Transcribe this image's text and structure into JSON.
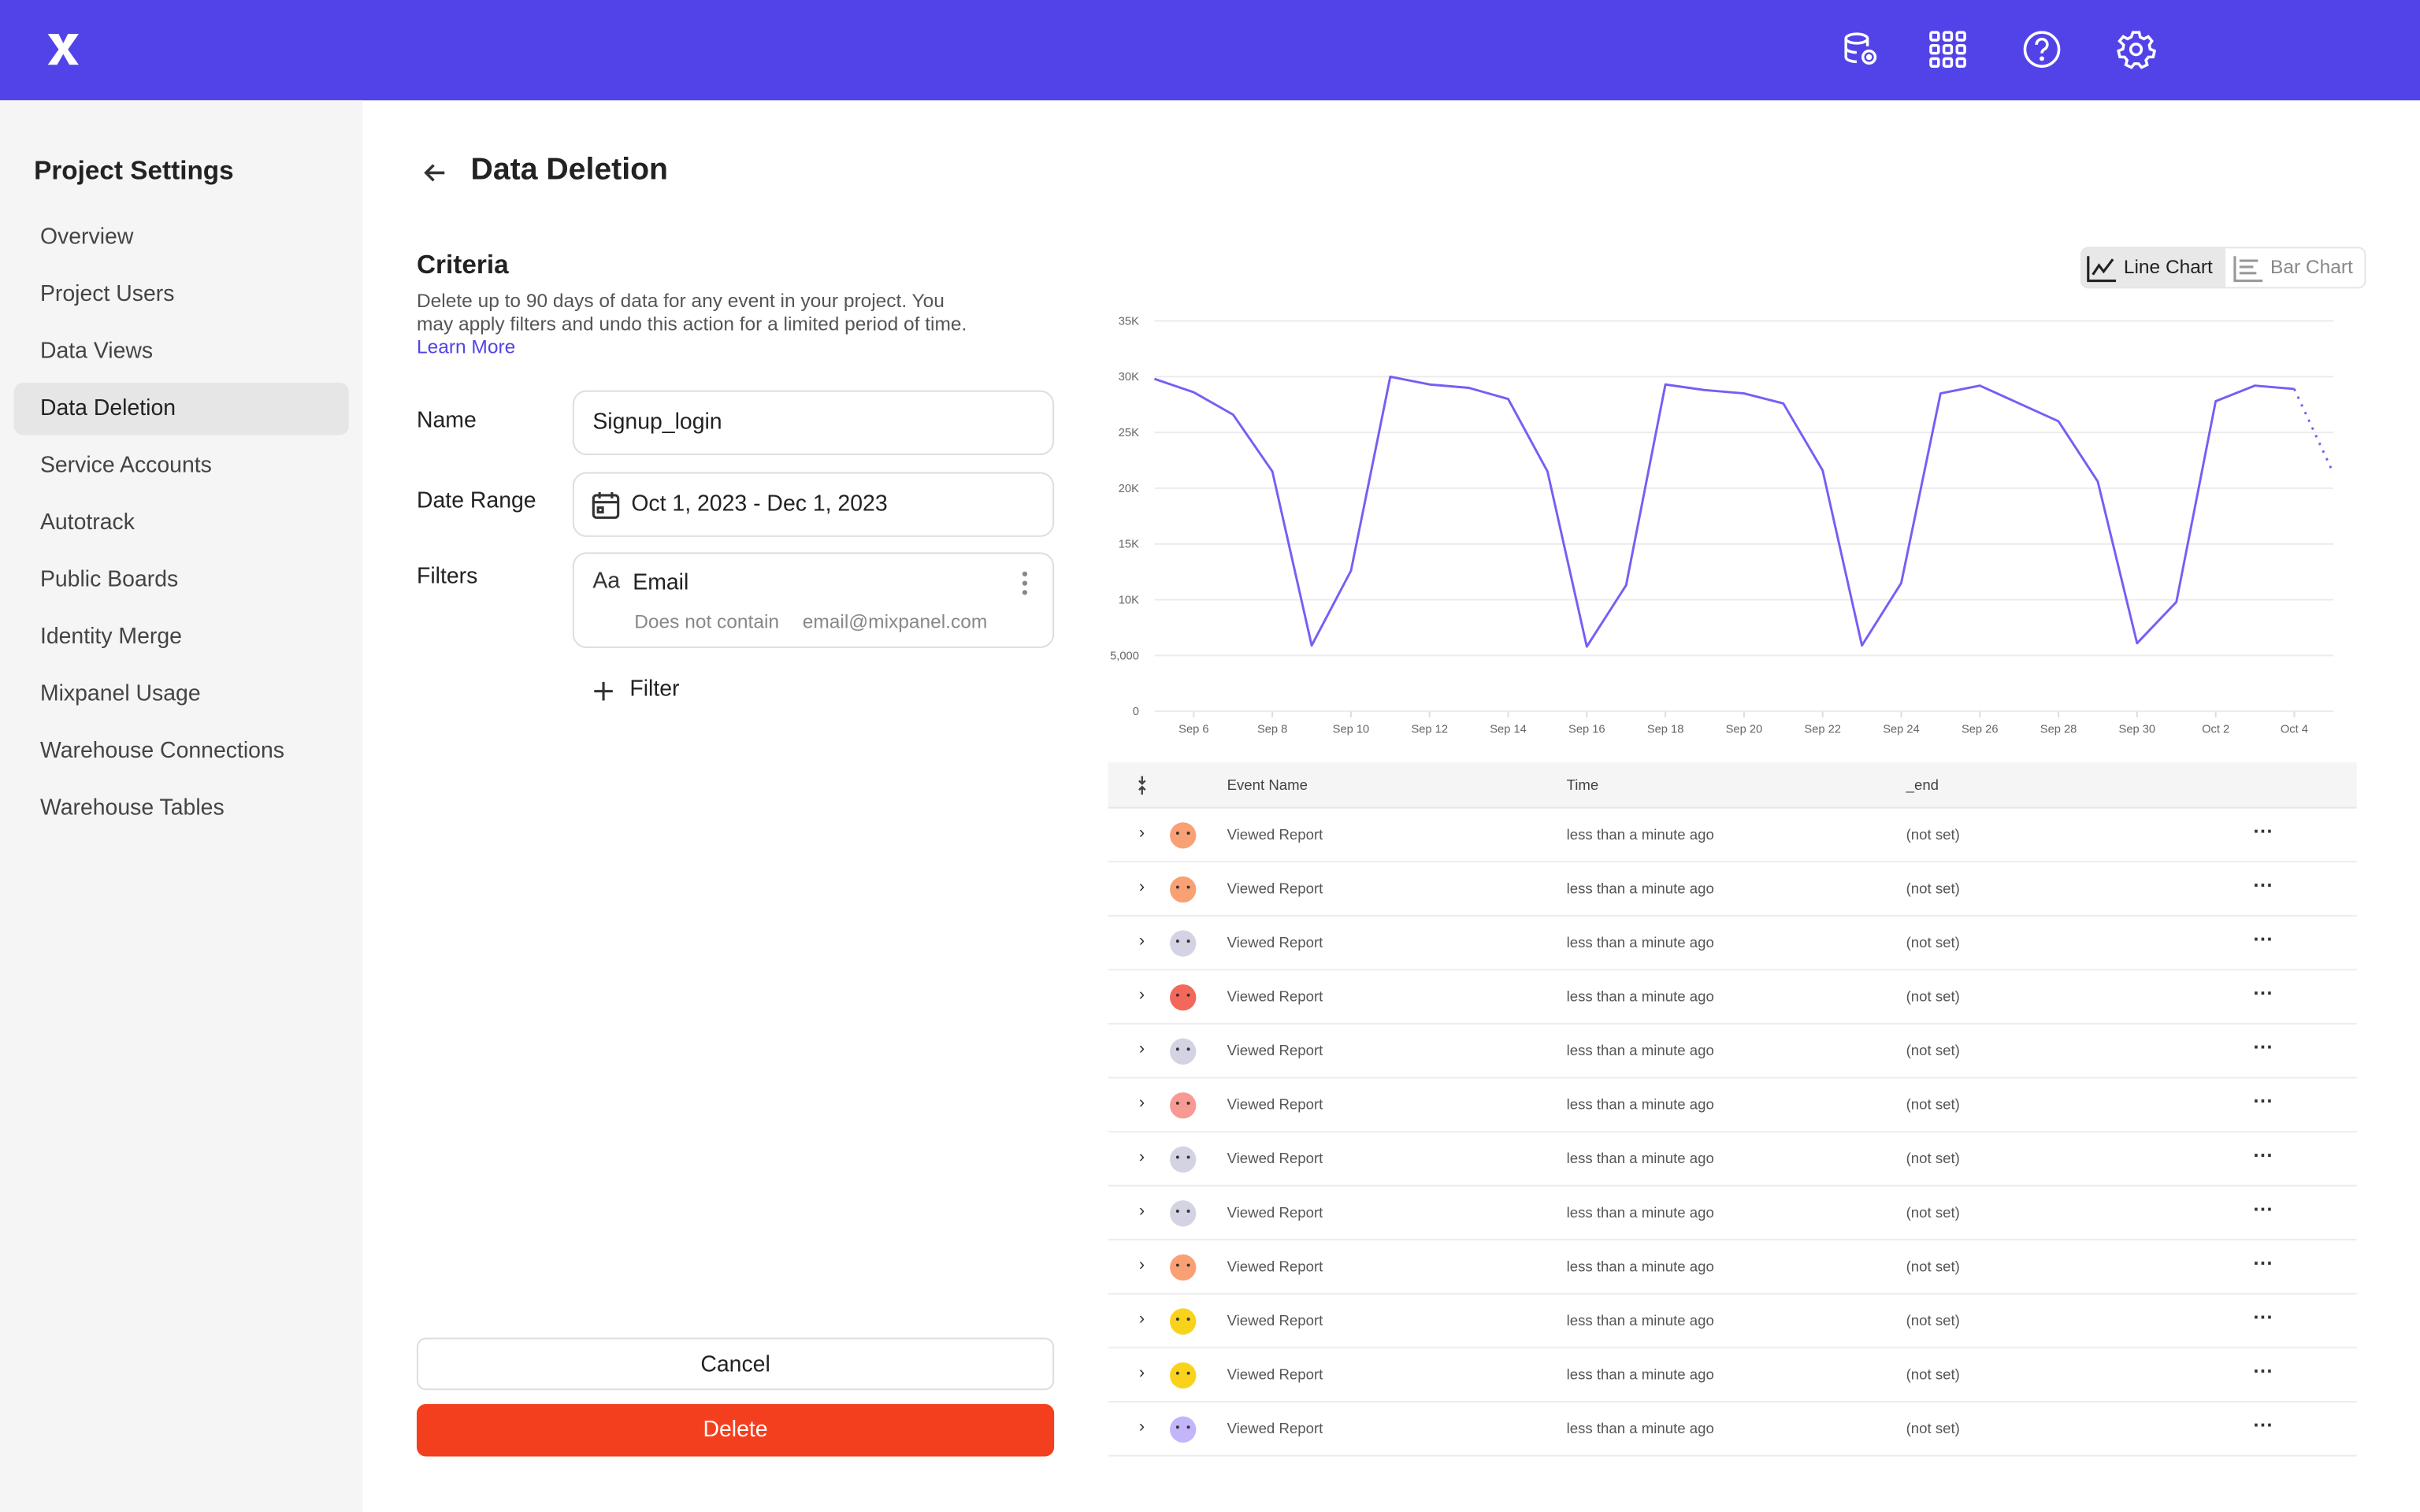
{
  "topbar": {
    "logo": "mixpanel-logo",
    "icons": [
      "database-settings-icon",
      "apps-grid-icon",
      "help-icon",
      "settings-gear-icon"
    ],
    "color": "#5243e8"
  },
  "sidebar": {
    "title": "Project Settings",
    "items": [
      {
        "label": "Overview"
      },
      {
        "label": "Project Users"
      },
      {
        "label": "Data Views"
      },
      {
        "label": "Data Deletion",
        "active": true
      },
      {
        "label": "Service Accounts"
      },
      {
        "label": "Autotrack"
      },
      {
        "label": "Public Boards"
      },
      {
        "label": "Identity Merge"
      },
      {
        "label": "Mixpanel Usage"
      },
      {
        "label": "Warehouse Connections"
      },
      {
        "label": "Warehouse Tables"
      }
    ]
  },
  "page": {
    "title": "Data Deletion"
  },
  "criteria": {
    "heading": "Criteria",
    "description": "Delete up to 90 days of data for any event in your project. You may apply filters and undo this action for a limited period of time.",
    "learn_more": "Learn More",
    "name_label": "Name",
    "name_value": "Signup_login",
    "date_label": "Date Range",
    "date_value": "Oct 1, 2023 - Dec 1, 2023",
    "filters_label": "Filters",
    "filter": {
      "type_icon": "Aa",
      "property": "Email",
      "operator": "Does not contain",
      "value": "email@mixpanel.com"
    },
    "add_filter": "Filter",
    "cancel": "Cancel",
    "delete": "Delete",
    "delete_color": "#f43f1e"
  },
  "chart_toggle": {
    "line": "Line Chart",
    "bar": "Bar Chart",
    "selected": "line"
  },
  "chart_data": {
    "type": "line",
    "x": [
      "Sep 5",
      "Sep 6",
      "Sep 7",
      "Sep 8",
      "Sep 9",
      "Sep 10",
      "Sep 11",
      "Sep 12",
      "Sep 13",
      "Sep 14",
      "Sep 15",
      "Sep 16",
      "Sep 17",
      "Sep 18",
      "Sep 19",
      "Sep 20",
      "Sep 21",
      "Sep 22",
      "Sep 23",
      "Sep 24",
      "Sep 25",
      "Sep 26",
      "Sep 27",
      "Sep 28",
      "Sep 29",
      "Sep 30",
      "Oct 1",
      "Oct 2",
      "Oct 3",
      "Oct 4",
      "Oct 5"
    ],
    "values": [
      29800,
      28600,
      26600,
      21500,
      5900,
      12600,
      30000,
      29300,
      29000,
      28000,
      21500,
      5800,
      11300,
      29300,
      28800,
      28500,
      27600,
      21600,
      5900,
      11500,
      28500,
      29200,
      27600,
      26000,
      20600,
      6100,
      9800,
      27800,
      29200,
      28900,
      21300
    ],
    "partial_last_point": true,
    "color": "#7a5cf5",
    "ylim": [
      0,
      35000
    ],
    "yticks": [
      "0",
      "5,000",
      "10K",
      "15K",
      "20K",
      "25K",
      "30K",
      "35K"
    ],
    "xticks": [
      "Sep 6",
      "Sep 8",
      "Sep 10",
      "Sep 12",
      "Sep 14",
      "Sep 16",
      "Sep 18",
      "Sep 20",
      "Sep 22",
      "Sep 24",
      "Sep 26",
      "Sep 28",
      "Sep 30",
      "Oct 2",
      "Oct 4"
    ],
    "grid": true
  },
  "table": {
    "columns": [
      "Event Name",
      "Time",
      "_end"
    ],
    "rows": [
      {
        "event": "Viewed Report",
        "time": "less than a minute ago",
        "end": "(not set)",
        "avatar_color": "#f9a074"
      },
      {
        "event": "Viewed Report",
        "time": "less than a minute ago",
        "end": "(not set)",
        "avatar_color": "#f9a074"
      },
      {
        "event": "Viewed Report",
        "time": "less than a minute ago",
        "end": "(not set)",
        "avatar_color": "#d3d3e3"
      },
      {
        "event": "Viewed Report",
        "time": "less than a minute ago",
        "end": "(not set)",
        "avatar_color": "#f4685c"
      },
      {
        "event": "Viewed Report",
        "time": "less than a minute ago",
        "end": "(not set)",
        "avatar_color": "#d3d3e3"
      },
      {
        "event": "Viewed Report",
        "time": "less than a minute ago",
        "end": "(not set)",
        "avatar_color": "#f79a94"
      },
      {
        "event": "Viewed Report",
        "time": "less than a minute ago",
        "end": "(not set)",
        "avatar_color": "#d3d3e3"
      },
      {
        "event": "Viewed Report",
        "time": "less than a minute ago",
        "end": "(not set)",
        "avatar_color": "#d3d3e3"
      },
      {
        "event": "Viewed Report",
        "time": "less than a minute ago",
        "end": "(not set)",
        "avatar_color": "#f9a074"
      },
      {
        "event": "Viewed Report",
        "time": "less than a minute ago",
        "end": "(not set)",
        "avatar_color": "#f9d21c"
      },
      {
        "event": "Viewed Report",
        "time": "less than a minute ago",
        "end": "(not set)",
        "avatar_color": "#f9d21c"
      },
      {
        "event": "Viewed Report",
        "time": "less than a minute ago",
        "end": "(not set)",
        "avatar_color": "#c4b5fb"
      }
    ]
  }
}
